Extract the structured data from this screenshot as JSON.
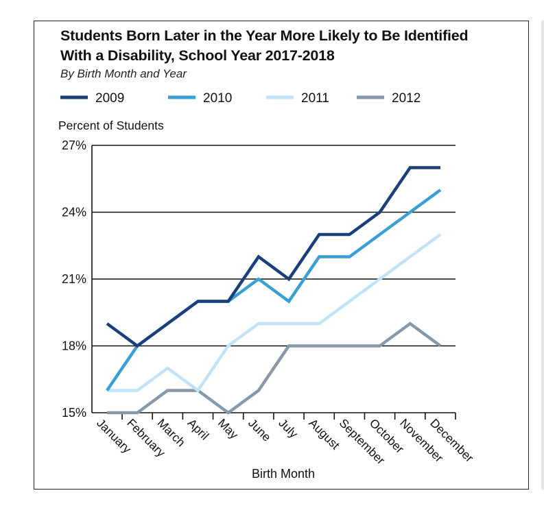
{
  "chart_data": {
    "type": "line",
    "title": "Students Born Later in the Year More Likely to Be Identified With a Disability, School Year 2017-2018",
    "subtitle": "By Birth Month and Year",
    "xlabel": "Birth Month",
    "ylabel": "Percent of Students",
    "categories": [
      "January",
      "February",
      "March",
      "April",
      "May",
      "June",
      "July",
      "August",
      "September",
      "October",
      "November",
      "December"
    ],
    "ylim": [
      15,
      27
    ],
    "yticks": [
      15,
      18,
      21,
      24,
      27
    ],
    "ytick_labels": [
      "15%",
      "18%",
      "21%",
      "24%",
      "27%"
    ],
    "grid": true,
    "legend_position": "top",
    "series": [
      {
        "name": "2009",
        "color": "#1b3f7a",
        "values": [
          19,
          18,
          19,
          20,
          20,
          22,
          21,
          23,
          23,
          24,
          26,
          26
        ]
      },
      {
        "name": "2010",
        "color": "#3a9fd3",
        "values": [
          16,
          18,
          19,
          20,
          20,
          21,
          20,
          22,
          22,
          23,
          24,
          25
        ]
      },
      {
        "name": "2011",
        "color": "#c2e3f6",
        "values": [
          16,
          16,
          17,
          16,
          18,
          19,
          19,
          19,
          20,
          21,
          22,
          23
        ]
      },
      {
        "name": "2012",
        "color": "#8799a8",
        "values": [
          15,
          15,
          16,
          16,
          15,
          16,
          18,
          18,
          18,
          18,
          19,
          18
        ]
      }
    ]
  }
}
